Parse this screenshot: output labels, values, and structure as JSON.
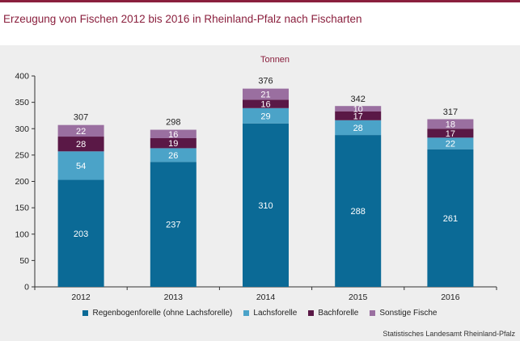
{
  "title": "Erzeugung von Fischen 2012 bis 2016 in Rheinland-Pfalz nach Fischarten",
  "unit_label": "Tonnen",
  "source": "Statistisches Landesamt Rheinland-Pfalz",
  "colors": {
    "accent": "#8a1f3d",
    "panel": "#eeeeee"
  },
  "chart_data": {
    "type": "bar",
    "stacked": true,
    "categories": [
      "2012",
      "2013",
      "2014",
      "2015",
      "2016"
    ],
    "series": [
      {
        "name": "Regenbogenforelle (ohne Lachsforelle)",
        "values": [
          203,
          237,
          310,
          288,
          261
        ],
        "color": "#0b6a96"
      },
      {
        "name": "Lachsforelle",
        "values": [
          54,
          26,
          29,
          28,
          22
        ],
        "color": "#4ba3c8"
      },
      {
        "name": "Bachforelle",
        "values": [
          28,
          19,
          16,
          17,
          17
        ],
        "color": "#5a1846"
      },
      {
        "name": "Sonstige Fische",
        "values": [
          22,
          16,
          21,
          10,
          18
        ],
        "color": "#9a6fa0"
      }
    ],
    "totals": [
      307,
      298,
      376,
      342,
      317
    ],
    "ylim": [
      0,
      400
    ],
    "yticks": [
      0,
      50,
      100,
      150,
      200,
      250,
      300,
      350,
      400
    ],
    "grid": false,
    "legend_position": "bottom"
  }
}
